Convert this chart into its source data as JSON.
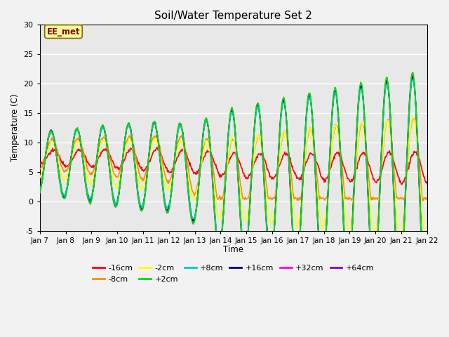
{
  "title": "Soil/Water Temperature Set 2",
  "xlabel": "Time",
  "ylabel": "Temperature (C)",
  "annotation": "EE_met",
  "ylim": [
    -5,
    30
  ],
  "yticks": [
    -5,
    0,
    5,
    10,
    15,
    20,
    25,
    30
  ],
  "n_days": 15,
  "xtick_labels": [
    "Jan 7",
    "Jan 8",
    "Jan 9",
    "Jan 10",
    "Jan 11",
    "Jan 12",
    "Jan 13",
    "Jan 14",
    "Jan 15",
    "Jan 16",
    "Jan 17",
    "Jan 18",
    "Jan 19",
    "Jan 20",
    "Jan 21",
    "Jan 22"
  ],
  "series": {
    "-16cm": {
      "color": "#FF0000",
      "lw": 1.2
    },
    "-8cm": {
      "color": "#FF8C00",
      "lw": 1.2
    },
    "-2cm": {
      "color": "#FFFF00",
      "lw": 1.2
    },
    "+2cm": {
      "color": "#00DD00",
      "lw": 1.2
    },
    "+8cm": {
      "color": "#00CCCC",
      "lw": 1.2
    },
    "+16cm": {
      "color": "#000088",
      "lw": 1.2
    },
    "+32cm": {
      "color": "#FF00FF",
      "lw": 1.2
    },
    "+64cm": {
      "color": "#8800CC",
      "lw": 1.2
    }
  },
  "plot_bg": "#E8E8E8",
  "fig_bg": "#F2F2F2",
  "grid_color": "#FFFFFF",
  "figsize": [
    6.4,
    4.8
  ],
  "dpi": 100
}
